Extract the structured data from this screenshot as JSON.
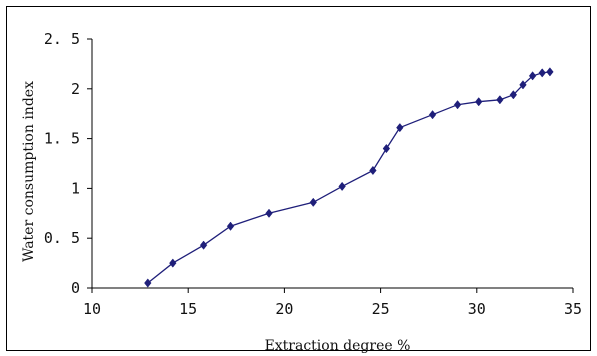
{
  "chart_data": {
    "type": "line",
    "title": "",
    "xlabel": "Extraction degree %",
    "ylabel": "Water consumption index",
    "xlim": [
      10,
      35
    ],
    "ylim": [
      0,
      2.5
    ],
    "x_ticks": [
      10,
      15,
      20,
      25,
      30,
      35
    ],
    "x_tick_labels": [
      "10",
      "15",
      "20",
      "25",
      "30",
      "35"
    ],
    "y_ticks": [
      0,
      0.5,
      1,
      1.5,
      2,
      2.5
    ],
    "y_tick_labels": [
      "0",
      "0. 5",
      "1",
      "1. 5",
      "2",
      "2. 5"
    ],
    "grid": false,
    "legend": "none",
    "series": [
      {
        "color": "#1f1f7a",
        "marker": "diamond",
        "x": [
          12.9,
          14.2,
          15.8,
          17.2,
          19.2,
          21.5,
          23.0,
          24.6,
          25.3,
          26.0,
          27.7,
          29.0,
          30.1,
          31.2,
          31.9,
          32.4,
          32.9,
          33.4,
          33.8
        ],
        "y": [
          0.05,
          0.25,
          0.43,
          0.62,
          0.75,
          0.86,
          1.02,
          1.18,
          1.4,
          1.61,
          1.74,
          1.84,
          1.87,
          1.89,
          1.94,
          2.04,
          2.13,
          2.16,
          2.17
        ]
      }
    ]
  }
}
